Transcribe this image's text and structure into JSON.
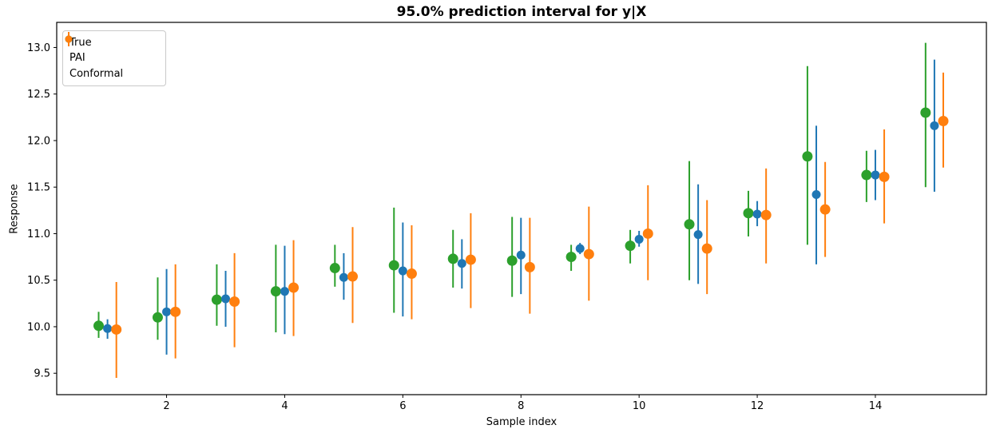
{
  "chart_data": {
    "type": "scatter",
    "subtype": "errorbar",
    "title": "95.0% prediction interval for y|X",
    "xlabel": "Sample index",
    "ylabel": "Response",
    "xlim": [
      0.14,
      15.88
    ],
    "ylim": [
      9.27,
      13.27
    ],
    "x_ticks": [
      2,
      4,
      6,
      8,
      10,
      12,
      14
    ],
    "y_ticks": [
      9.5,
      10.0,
      10.5,
      11.0,
      11.5,
      12.0,
      12.5,
      13.0
    ],
    "grid": false,
    "legend_position": "upper-left",
    "categories": [
      1,
      2,
      3,
      4,
      5,
      6,
      7,
      8,
      9,
      10,
      11,
      12,
      13,
      14,
      15
    ],
    "series": [
      {
        "name": "True",
        "color": "#1f77b4",
        "x_offset": 0,
        "marker_radius": 5.5,
        "centers": [
          9.98,
          10.16,
          10.3,
          10.38,
          10.53,
          10.6,
          10.68,
          10.77,
          10.84,
          10.94,
          10.99,
          11.21,
          11.42,
          11.63,
          12.16
        ],
        "lower": [
          9.87,
          9.7,
          10.0,
          9.92,
          10.29,
          10.11,
          10.41,
          10.35,
          10.78,
          10.86,
          10.46,
          11.08,
          10.67,
          11.36,
          11.45
        ],
        "upper": [
          10.08,
          10.62,
          10.6,
          10.87,
          10.79,
          11.12,
          10.94,
          11.17,
          10.9,
          11.03,
          11.53,
          11.35,
          12.16,
          11.9,
          12.87
        ]
      },
      {
        "name": "PAI",
        "color": "#2ca02c",
        "x_offset": -0.15,
        "marker_radius": 6.5,
        "centers": [
          10.01,
          10.1,
          10.29,
          10.38,
          10.63,
          10.66,
          10.73,
          10.71,
          10.75,
          10.87,
          11.1,
          11.22,
          11.83,
          11.63,
          12.3
        ],
        "lower": [
          9.88,
          9.86,
          10.01,
          9.94,
          10.43,
          10.15,
          10.42,
          10.32,
          10.6,
          10.68,
          10.5,
          10.97,
          10.88,
          11.34,
          11.5
        ],
        "upper": [
          10.16,
          10.53,
          10.67,
          10.88,
          10.88,
          11.28,
          11.04,
          11.18,
          10.88,
          11.04,
          11.78,
          11.46,
          12.8,
          11.89,
          13.05
        ]
      },
      {
        "name": "Conformal",
        "color": "#ff7f0e",
        "x_offset": 0.15,
        "marker_radius": 6.5,
        "centers": [
          9.97,
          10.16,
          10.27,
          10.42,
          10.54,
          10.57,
          10.72,
          10.64,
          10.78,
          11.0,
          10.84,
          11.2,
          11.26,
          11.61,
          12.21
        ],
        "lower": [
          9.45,
          9.66,
          9.78,
          9.9,
          10.04,
          10.08,
          10.2,
          10.14,
          10.28,
          10.5,
          10.35,
          10.68,
          10.75,
          11.11,
          11.71
        ],
        "upper": [
          10.48,
          10.67,
          10.79,
          10.93,
          11.07,
          11.09,
          11.22,
          11.17,
          11.29,
          11.52,
          11.36,
          11.7,
          11.77,
          12.12,
          12.73
        ]
      }
    ]
  }
}
